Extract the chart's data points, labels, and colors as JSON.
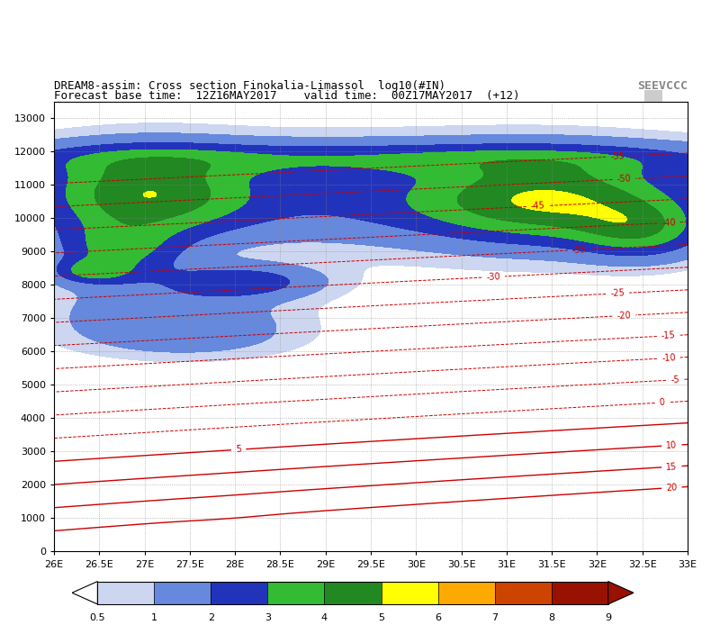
{
  "title_line1": "DREAM8-assim: Cross section Finokalia-Limassol  log10(#IN)",
  "title_line2": "Forecast base time:  12Z16MAY2017    valid time:  00Z17MAY2017  (+12)",
  "x_ticks": [
    26,
    26.5,
    27,
    27.5,
    28,
    28.5,
    29,
    29.5,
    30,
    30.5,
    31,
    31.5,
    32,
    32.5,
    33
  ],
  "x_labels": [
    "26E",
    "26.5E",
    "27E",
    "27.5E",
    "28E",
    "28.5E",
    "29E",
    "29.5E",
    "30E",
    "30.5E",
    "31E",
    "31.5E",
    "32E",
    "32.5E",
    "33E"
  ],
  "y_ticks": [
    0,
    1000,
    2000,
    3000,
    4000,
    5000,
    6000,
    7000,
    8000,
    9000,
    10000,
    11000,
    12000,
    13000
  ],
  "xlim": [
    26,
    33
  ],
  "ylim": [
    0,
    13500
  ],
  "ice_colors": [
    "#ccd6f0",
    "#6688dd",
    "#2233bb",
    "#33bb33",
    "#228822",
    "#ffff00",
    "#ffaa00",
    "#cc4400",
    "#991100"
  ],
  "ice_levels": [
    0.5,
    1,
    2,
    3,
    4,
    5,
    6,
    7,
    8,
    9
  ],
  "contour_color": "#cc0000",
  "logo_text": "SEEVCCC"
}
